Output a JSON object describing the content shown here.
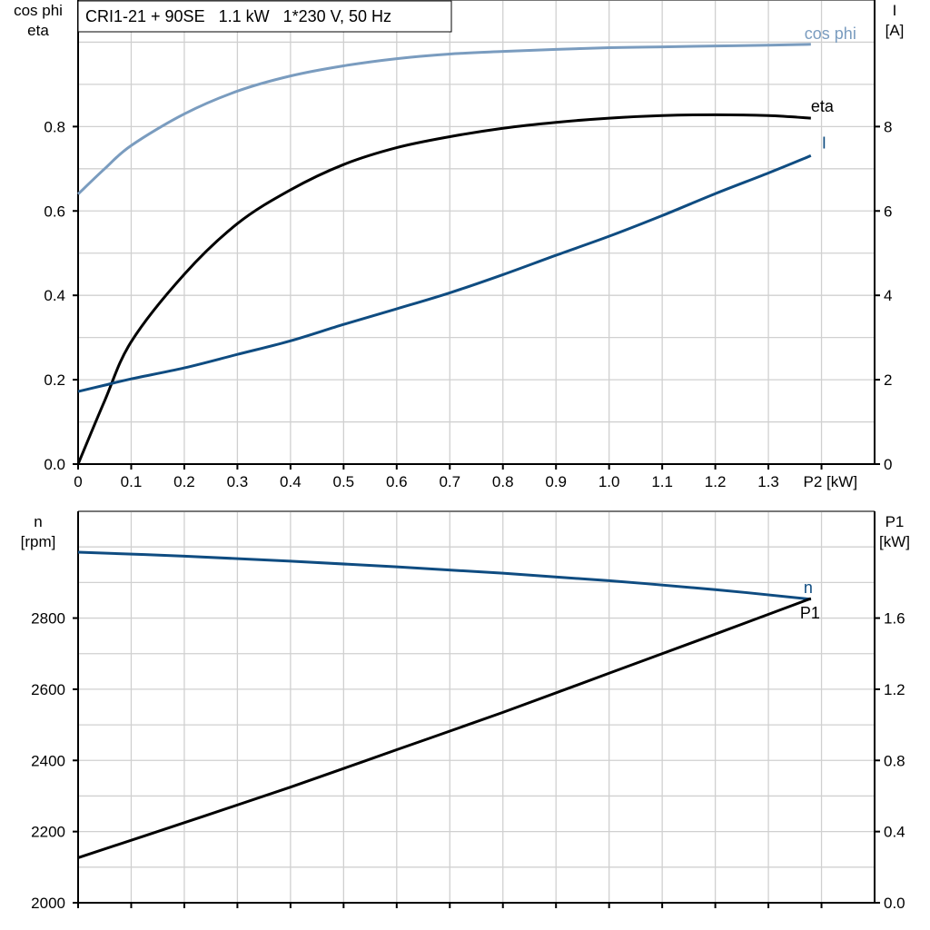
{
  "chart_data": [
    {
      "type": "line",
      "title": "CRI1-21 + 90SE   1.1 kW   1*230 V, 50 Hz",
      "xlabel": "P2 [kW]",
      "xlim": [
        0,
        1.5
      ],
      "xticks": [
        "0",
        "0.1",
        "0.2",
        "0.3",
        "0.4",
        "0.5",
        "0.6",
        "0.7",
        "0.8",
        "0.9",
        "1.0",
        "1.1",
        "1.2",
        "1.3"
      ],
      "ylabel_left": [
        "cos phi",
        "eta"
      ],
      "ylim_left": [
        0,
        1.1
      ],
      "yticks_left": [
        "0.0",
        "0.2",
        "0.4",
        "0.6",
        "0.8"
      ],
      "ylabel_right": [
        "I",
        "[A]"
      ],
      "ylim_right": [
        0,
        11
      ],
      "yticks_right": [
        "0",
        "2",
        "4",
        "6",
        "8"
      ],
      "grid": true,
      "x": [
        0,
        0.05,
        0.1,
        0.2,
        0.3,
        0.4,
        0.5,
        0.6,
        0.7,
        0.8,
        0.9,
        1.0,
        1.1,
        1.2,
        1.3,
        1.38
      ],
      "series": [
        {
          "name": "cos phi",
          "axis": "left",
          "color": "#7a9cbf",
          "values": [
            0.64,
            0.7,
            0.755,
            0.83,
            0.884,
            0.92,
            0.944,
            0.961,
            0.972,
            0.978,
            0.983,
            0.987,
            0.989,
            0.991,
            0.993,
            0.995
          ]
        },
        {
          "name": "eta",
          "axis": "left",
          "color": "#000000",
          "values": [
            0.0,
            0.15,
            0.29,
            0.45,
            0.57,
            0.65,
            0.71,
            0.75,
            0.776,
            0.796,
            0.81,
            0.82,
            0.826,
            0.828,
            0.826,
            0.82
          ]
        },
        {
          "name": "I",
          "axis": "right",
          "color": "#0f4c81",
          "values": [
            1.72,
            1.87,
            2.02,
            2.28,
            2.6,
            2.92,
            3.31,
            3.68,
            4.06,
            4.49,
            4.95,
            5.4,
            5.89,
            6.41,
            6.9,
            7.31
          ]
        }
      ]
    },
    {
      "type": "line",
      "xlim": [
        0,
        1.5
      ],
      "ylabel_left": [
        "n",
        "[rpm]"
      ],
      "ylim_left": [
        2000,
        3100
      ],
      "yticks_left": [
        "2000",
        "2200",
        "2400",
        "2600",
        "2800"
      ],
      "ylabel_right": [
        "P1",
        "[kW]"
      ],
      "ylim_right": [
        0,
        2.2
      ],
      "yticks_right": [
        "0.0",
        "0.4",
        "0.8",
        "1.2",
        "1.6"
      ],
      "grid": true,
      "x": [
        0,
        0.2,
        0.4,
        0.6,
        0.8,
        1.0,
        1.2,
        1.38
      ],
      "series": [
        {
          "name": "n",
          "axis": "left",
          "color": "#0f4c81",
          "values": [
            2985,
            2974,
            2960,
            2944,
            2926,
            2905,
            2880,
            2853
          ]
        },
        {
          "name": "P1",
          "axis": "right",
          "color": "#000000",
          "values": [
            0.253,
            0.45,
            0.65,
            0.86,
            1.07,
            1.29,
            1.51,
            1.71
          ]
        }
      ]
    }
  ]
}
